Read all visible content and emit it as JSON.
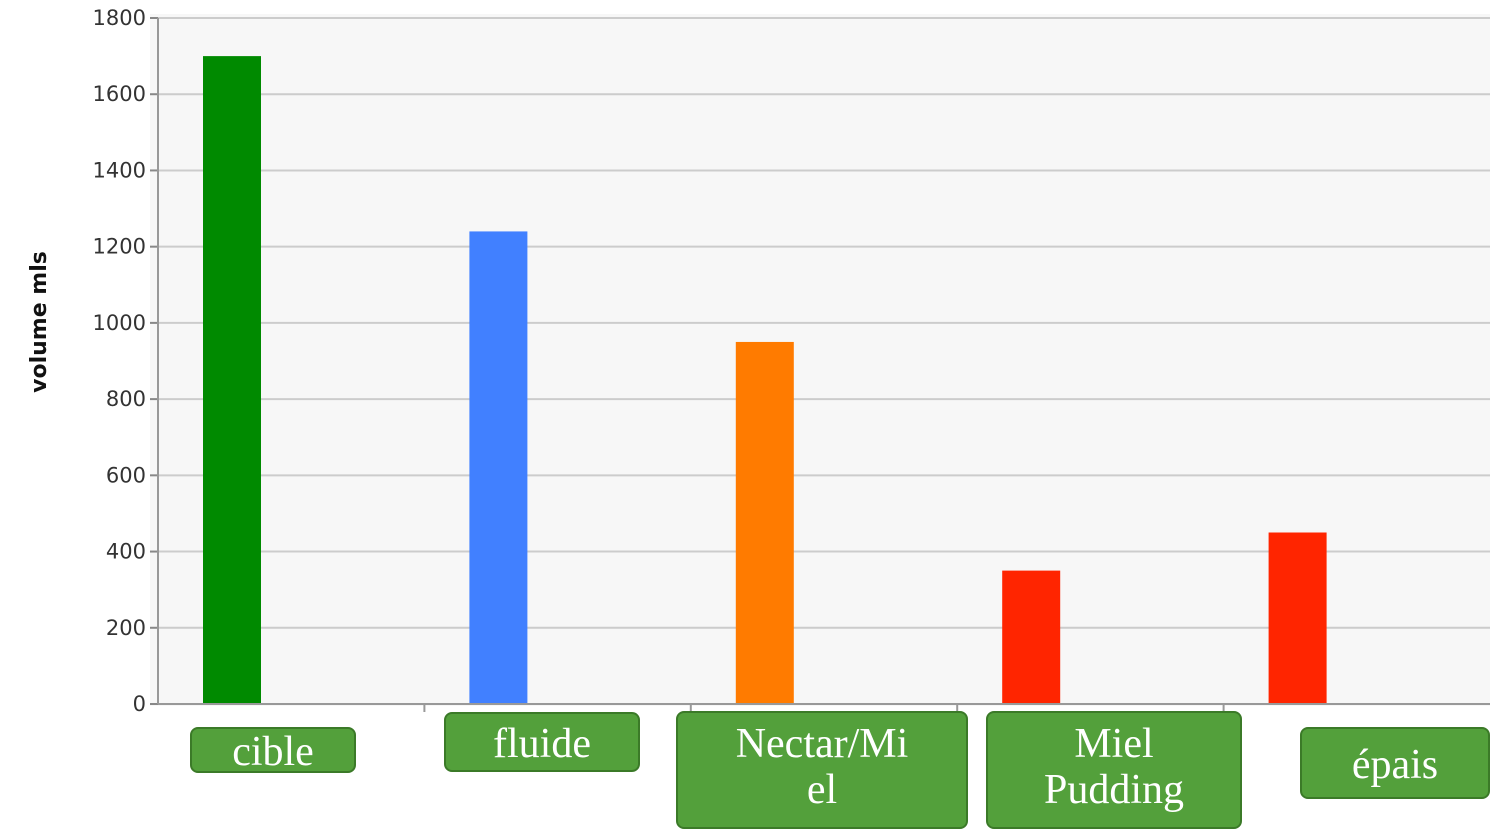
{
  "chart_data": {
    "type": "bar",
    "categories": [
      "cible",
      "fluide",
      "Nectar/Miel",
      "Miel Pudding",
      "épais"
    ],
    "category_label_lines": [
      [
        "cible"
      ],
      [
        "fluide"
      ],
      [
        "Nectar/Mi",
        "el"
      ],
      [
        "Miel",
        "Pudding"
      ],
      [
        "épais"
      ]
    ],
    "values": [
      1700,
      1240,
      950,
      350,
      450
    ],
    "bar_colors": [
      "#008a00",
      "#4180ff",
      "#ff7b00",
      "#ff2500",
      "#ff2500"
    ],
    "title": "",
    "xlabel": "",
    "ylabel": "volume mls",
    "ylim": [
      0,
      1800
    ],
    "yticks": [
      "0",
      "200",
      "400",
      "600",
      "800",
      "1000",
      "1200",
      "1400",
      "1600",
      "1800"
    ],
    "grid": true,
    "legend": "none"
  },
  "colors": {
    "background": "#ffffff",
    "plot_background": "#f7f7f7",
    "gridline": "#cccccc",
    "label_box": "#53a03b",
    "label_box_border": "#3b7a28",
    "label_text": "#ffffff"
  }
}
